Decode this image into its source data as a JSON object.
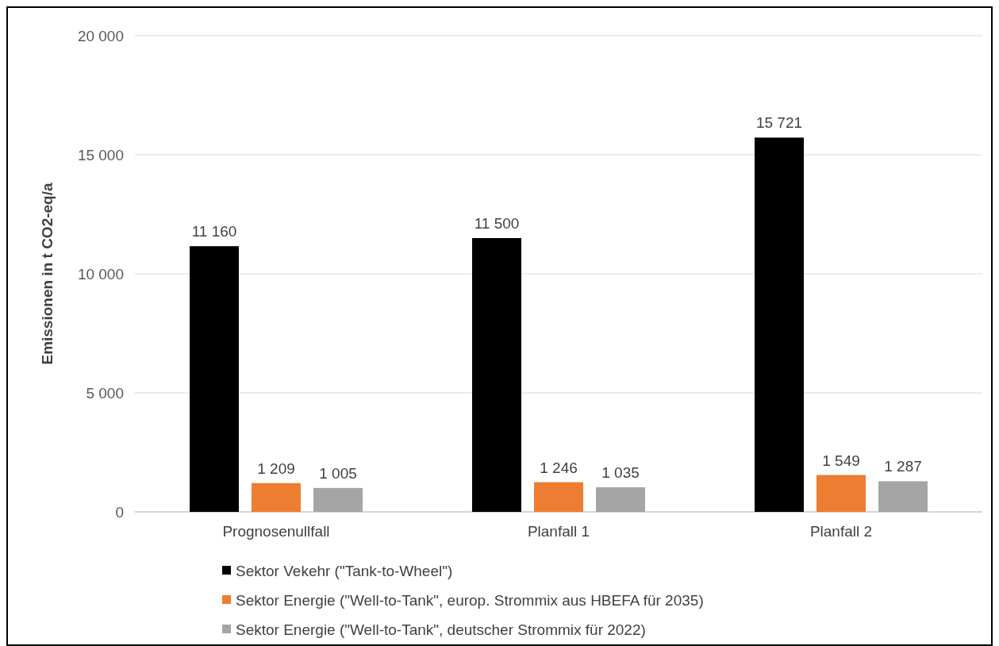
{
  "chart_data": {
    "type": "bar",
    "ylabel": "Emissionen in t CO2-eq/a",
    "categories": [
      "Prognosenullfall",
      "Planfall 1",
      "Planfall 2"
    ],
    "series": [
      {
        "name": "Sektor Vekehr (\"Tank-to-Wheel\")",
        "color": "#000000",
        "values": [
          11160,
          11500,
          15721
        ],
        "value_labels": [
          "11 160",
          "11 500",
          "15 721"
        ]
      },
      {
        "name": "Sektor Energie (\"Well-to-Tank\", europ. Strommix aus HBEFA für 2035)",
        "color": "#ed7d31",
        "values": [
          1209,
          1246,
          1549
        ],
        "value_labels": [
          "1 209",
          "1 246",
          "1 549"
        ]
      },
      {
        "name": "Sektor Energie (\"Well-to-Tank\", deutscher Strommix für 2022)",
        "color": "#a5a5a5",
        "values": [
          1005,
          1035,
          1287
        ],
        "value_labels": [
          "1 005",
          "1 035",
          "1 287"
        ]
      }
    ],
    "ylim": [
      0,
      20000
    ],
    "yticks": [
      {
        "value": 0,
        "label": "0"
      },
      {
        "value": 5000,
        "label": "5 000"
      },
      {
        "value": 10000,
        "label": "10 000"
      },
      {
        "value": 15000,
        "label": "15 000"
      },
      {
        "value": 20000,
        "label": "20 000"
      }
    ],
    "grid": "y",
    "legend": "bottom"
  }
}
